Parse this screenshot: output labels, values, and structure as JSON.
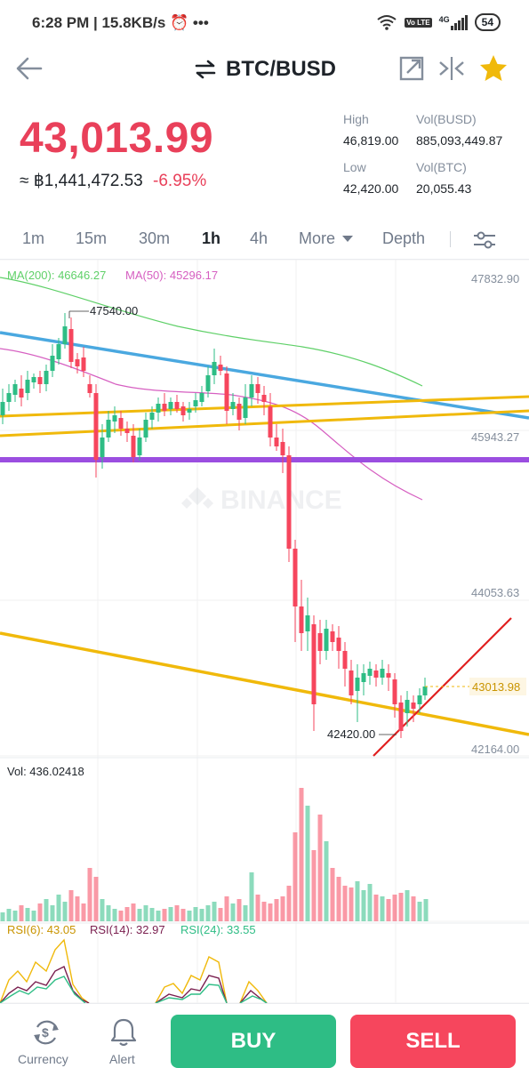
{
  "status_bar": {
    "time": "6:28 PM",
    "speed": "15.8KB/s",
    "volte": "Vo LTE",
    "network": "4G",
    "battery": "54"
  },
  "header": {
    "pair": "BTC/BUSD"
  },
  "ticker": {
    "last_price": "43,013.99",
    "fiat_price": "≈ ฿1,441,472.53",
    "change_pct": "-6.95%",
    "high_label": "High",
    "high_value": "46,819.00",
    "low_label": "Low",
    "low_value": "42,420.00",
    "vol_busd_label": "Vol(BUSD)",
    "vol_busd_value": "885,093,449.87",
    "vol_btc_label": "Vol(BTC)",
    "vol_btc_value": "20,055.43"
  },
  "tabs": [
    "1m",
    "15m",
    "30m",
    "1h",
    "4h",
    "More",
    "Depth"
  ],
  "active_tab": "1h",
  "chart": {
    "ma200_label": "MA(200): 46646.27",
    "ma50_label": "MA(50): 45296.17",
    "price_axis": [
      "47832.90",
      "45943.27",
      "44053.63",
      "42164.00"
    ],
    "current_price_tag": "43013.98",
    "high_marker": "47540.00",
    "low_marker": "42420.00",
    "watermark": "BINANCE",
    "volume_label": "Vol: 436.02418",
    "rsi6_label": "RSI(6): 43.05",
    "rsi14_label": "RSI(14): 32.97",
    "rsi24_label": "RSI(24): 33.55"
  },
  "colors": {
    "up": "#2ebd85",
    "down": "#f6465d",
    "ma200": "#5fd068",
    "ma50": "#d65fc1",
    "blue_line": "#4aa8e0",
    "gold_line": "#f0b90b",
    "purple_line": "#9b4ee0",
    "red_line": "#e02020"
  },
  "bottom": {
    "currency_label": "Currency",
    "alert_label": "Alert",
    "buy_label": "BUY",
    "sell_label": "SELL"
  }
}
